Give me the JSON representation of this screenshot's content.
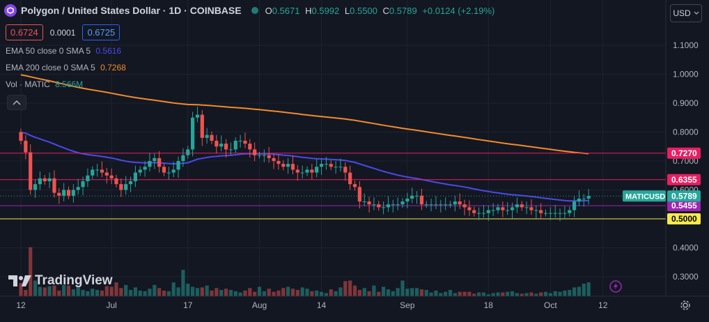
{
  "header": {
    "symbol_title": "Polygon / United States Dollar · 1D · COINBASE",
    "o_label": "O",
    "o_value": "0.5671",
    "h_label": "H",
    "h_value": "0.5992",
    "l_label": "L",
    "l_value": "0.5500",
    "c_label": "C",
    "c_value": "0.5789",
    "change": "+0.0124 (+2.19%)"
  },
  "quote": {
    "bid": "0.6724",
    "spread": "0.0001",
    "ask": "0.6725"
  },
  "indicators": {
    "ema50_label": "EMA 50 close 0 SMA 5",
    "ema50_value": "0.5616",
    "ema200_label": "EMA 200 close 0 SMA 5",
    "ema200_value": "0.7268",
    "vol_label": "Vol · MATIC",
    "vol_value": "8.566M"
  },
  "currency_button": "USD",
  "brand": "TradingView",
  "colors": {
    "background": "#131722",
    "up": "#26a69a",
    "down": "#ef5350",
    "ema50": "#4a4aea",
    "ema200": "#f28b2c",
    "support": "#f7e94d",
    "resistance": "#e91e63",
    "level_mid": "#9c27b0",
    "text": "#d1d4dc"
  },
  "chart_data": {
    "type": "candlestick",
    "title": "Polygon / United States Dollar · 1D · COINBASE",
    "y_ticks": [
      "1.1000",
      "1.0000",
      "0.9000",
      "0.8000",
      "0.7000",
      "0.6000",
      "0.5000",
      "0.4000",
      "0.3000"
    ],
    "ylim": [
      0.25,
      1.18
    ],
    "x_ticks": [
      {
        "label": "12",
        "day": 0
      },
      {
        "label": "Jul",
        "day": 19
      },
      {
        "label": "17",
        "day": 35
      },
      {
        "label": "Aug",
        "day": 50
      },
      {
        "label": "14",
        "day": 63
      },
      {
        "label": "Sep",
        "day": 81
      },
      {
        "label": "18",
        "day": 98
      },
      {
        "label": "Oct",
        "day": 111
      },
      {
        "label": "12",
        "day": 122
      }
    ],
    "x_start_date": "2023-06-10",
    "price_levels": [
      {
        "label": "0.7270",
        "value": 0.727,
        "color": "#e91e63"
      },
      {
        "label": "0.6355",
        "value": 0.6355,
        "color": "#e91e63"
      },
      {
        "label": "0.5455",
        "value": 0.5455,
        "color": "#9c27b0"
      },
      {
        "label": "0.5000",
        "value": 0.5,
        "color": "#f7e94d"
      }
    ],
    "last_price": {
      "symbol": "MATICUSD",
      "label": "0.5789",
      "value": 0.5789
    },
    "closes": [
      0.77,
      0.73,
      0.6,
      0.62,
      0.64,
      0.63,
      0.64,
      0.59,
      0.58,
      0.6,
      0.58,
      0.6,
      0.61,
      0.63,
      0.65,
      0.67,
      0.67,
      0.66,
      0.65,
      0.64,
      0.62,
      0.6,
      0.62,
      0.63,
      0.66,
      0.67,
      0.68,
      0.7,
      0.71,
      0.68,
      0.66,
      0.66,
      0.67,
      0.7,
      0.72,
      0.74,
      0.85,
      0.86,
      0.78,
      0.79,
      0.77,
      0.75,
      0.76,
      0.74,
      0.74,
      0.77,
      0.77,
      0.76,
      0.74,
      0.72,
      0.72,
      0.72,
      0.71,
      0.7,
      0.69,
      0.68,
      0.69,
      0.67,
      0.66,
      0.66,
      0.67,
      0.66,
      0.68,
      0.69,
      0.69,
      0.68,
      0.68,
      0.68,
      0.66,
      0.62,
      0.61,
      0.56,
      0.56,
      0.55,
      0.55,
      0.54,
      0.54,
      0.55,
      0.55,
      0.55,
      0.56,
      0.57,
      0.58,
      0.58,
      0.55,
      0.55,
      0.55,
      0.55,
      0.55,
      0.55,
      0.55,
      0.56,
      0.55,
      0.54,
      0.53,
      0.52,
      0.52,
      0.52,
      0.53,
      0.53,
      0.54,
      0.53,
      0.53,
      0.54,
      0.55,
      0.54,
      0.54,
      0.53,
      0.53,
      0.52,
      0.52,
      0.52,
      0.52,
      0.52,
      0.52,
      0.53,
      0.56,
      0.57,
      0.57,
      0.579
    ],
    "volumes": [
      2.1,
      1.0,
      7.8,
      2.5,
      1.5,
      1.4,
      1.6,
      1.7,
      0.9,
      1.8,
      1.7,
      1.1,
      1.5,
      1.0,
      0.8,
      1.2,
      1.0,
      0.9,
      1.6,
      1.5,
      2.2,
      1.3,
      1.8,
      1.0,
      1.4,
      0.9,
      0.8,
      1.2,
      1.8,
      1.3,
      0.9,
      0.8,
      2.2,
      1.4,
      4.2,
      2.0,
      1.5,
      1.3,
      1.4,
      1.7,
      0.9,
      1.3,
      1.0,
      1.2,
      1.0,
      0.8,
      0.6,
      0.9,
      1.3,
      0.7,
      1.5,
      0.8,
      1.2,
      0.7,
      0.9,
      1.3,
      1.5,
      1.2,
      1.0,
      1.4,
      1.2,
      0.8,
      0.9,
      0.7,
      0.5,
      1.1,
      0.8,
      1.4,
      2.4,
      2.5,
      1.7,
      1.0,
      1.3,
      0.8,
      1.7,
      0.7,
      1.5,
      1.1,
      0.8,
      1.3,
      2.5,
      1.2,
      1.3,
      1.3,
      1.1,
      1.0,
      0.6,
      0.9,
      0.5,
      0.7,
      1.0,
      0.5,
      0.7,
      0.7,
      0.7,
      0.4,
      0.6,
      0.6,
      0.3,
      0.5,
      0.6,
      0.6,
      0.7,
      0.8,
      0.5,
      0.4,
      0.5,
      0.6,
      0.4,
      0.6,
      0.7,
      0.5,
      0.8,
      0.7,
      0.9,
      1.0,
      1.4,
      1.5,
      2.0,
      2.2
    ]
  }
}
